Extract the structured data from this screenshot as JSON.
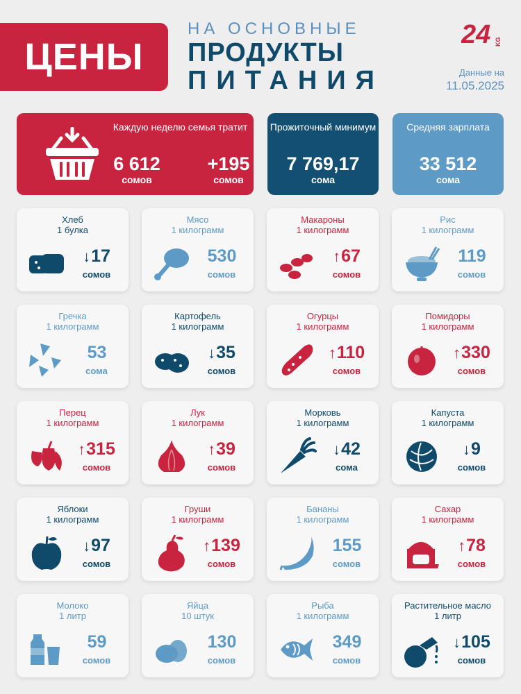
{
  "header": {
    "badge": "ЦЕНЫ",
    "line1": "НА ОСНОВНЫЕ",
    "line2": "ПРОДУКТЫ",
    "line3": "ПИТАНИЯ",
    "logo_text": "24",
    "logo_sub": "KG",
    "date_label": "Данные на",
    "date_value": "11.05.2025"
  },
  "summary": {
    "weekly": {
      "caption": "Каждую неделю семья тратит",
      "value": "6 612",
      "unit": "сомов",
      "change": "+195",
      "change_unit": "сомов"
    },
    "minimum": {
      "caption": "Прожиточный минимум",
      "value": "7 769,17",
      "unit": "сома"
    },
    "salary": {
      "caption": "Средняя зарплата",
      "value": "33 512",
      "unit": "сома"
    }
  },
  "colors": {
    "red": "#c9243f",
    "navy": "#124f73",
    "light_blue": "#5d9bc6"
  },
  "items": [
    {
      "name": "Хлеб",
      "qty": "1 булка",
      "arrow": "↓",
      "value": "17",
      "unit": "сомов",
      "theme": "navy",
      "icon": "bread-icon"
    },
    {
      "name": "Мясо",
      "qty": "1 килограмм",
      "arrow": "",
      "value": "530",
      "unit": "сомов",
      "theme": "blue",
      "icon": "meat-icon"
    },
    {
      "name": "Макароны",
      "qty": "1 килограмм",
      "arrow": "↑",
      "value": "67",
      "unit": "сомов",
      "theme": "red",
      "icon": "pasta-icon"
    },
    {
      "name": "Рис",
      "qty": "1 килограмм",
      "arrow": "",
      "value": "119",
      "unit": "сомов",
      "theme": "blue",
      "icon": "rice-icon"
    },
    {
      "name": "Гречка",
      "qty": "1 килограмм",
      "arrow": "",
      "value": "53",
      "unit": "сома",
      "theme": "blue",
      "icon": "buckwheat-icon"
    },
    {
      "name": "Картофель",
      "qty": "1 килограмм",
      "arrow": "↓",
      "value": "35",
      "unit": "сомов",
      "theme": "navy",
      "icon": "potato-icon"
    },
    {
      "name": "Огурцы",
      "qty": "1 килограмм",
      "arrow": "↑",
      "value": "110",
      "unit": "сомов",
      "theme": "red",
      "icon": "cucumber-icon"
    },
    {
      "name": "Помидоры",
      "qty": "1 килограмм",
      "arrow": "↑",
      "value": "330",
      "unit": "сомов",
      "theme": "red",
      "icon": "tomato-icon"
    },
    {
      "name": "Перец",
      "qty": "1 килограмм",
      "arrow": "↑",
      "value": "315",
      "unit": "сомов",
      "theme": "red",
      "icon": "pepper-icon"
    },
    {
      "name": "Лук",
      "qty": "1 килограмм",
      "arrow": "↑",
      "value": "39",
      "unit": "сомов",
      "theme": "red",
      "icon": "onion-icon"
    },
    {
      "name": "Морковь",
      "qty": "1 килограмм",
      "arrow": "↓",
      "value": "42",
      "unit": "сома",
      "theme": "navy",
      "icon": "carrot-icon"
    },
    {
      "name": "Капуста",
      "qty": "1 килограмм",
      "arrow": "↓",
      "value": "9",
      "unit": "сомов",
      "theme": "navy",
      "icon": "cabbage-icon"
    },
    {
      "name": "Яблоки",
      "qty": "1 килограмм",
      "arrow": "↓",
      "value": "97",
      "unit": "сомов",
      "theme": "navy",
      "icon": "apple-icon"
    },
    {
      "name": "Груши",
      "qty": "1 килограмм",
      "arrow": "↑",
      "value": "139",
      "unit": "сомов",
      "theme": "red",
      "icon": "pear-icon"
    },
    {
      "name": "Бананы",
      "qty": "1 килограмм",
      "arrow": "",
      "value": "155",
      "unit": "сомов",
      "theme": "blue",
      "icon": "banana-icon"
    },
    {
      "name": "Сахар",
      "qty": "1 килограмм",
      "arrow": "↑",
      "value": "78",
      "unit": "сомов",
      "theme": "red",
      "icon": "sugar-icon"
    },
    {
      "name": "Молоко",
      "qty": "1 литр",
      "arrow": "",
      "value": "59",
      "unit": "сомов",
      "theme": "blue",
      "icon": "milk-icon"
    },
    {
      "name": "Яйца",
      "qty": "10 штук",
      "arrow": "",
      "value": "130",
      "unit": "сомов",
      "theme": "blue",
      "icon": "eggs-icon"
    },
    {
      "name": "Рыба",
      "qty": "1 килограмм",
      "arrow": "",
      "value": "349",
      "unit": "сомов",
      "theme": "blue",
      "icon": "fish-icon"
    },
    {
      "name": "Растительное масло",
      "qty": "1 литр",
      "arrow": "↓",
      "value": "105",
      "unit": "сомов",
      "theme": "navy",
      "icon": "oil-icon"
    }
  ]
}
